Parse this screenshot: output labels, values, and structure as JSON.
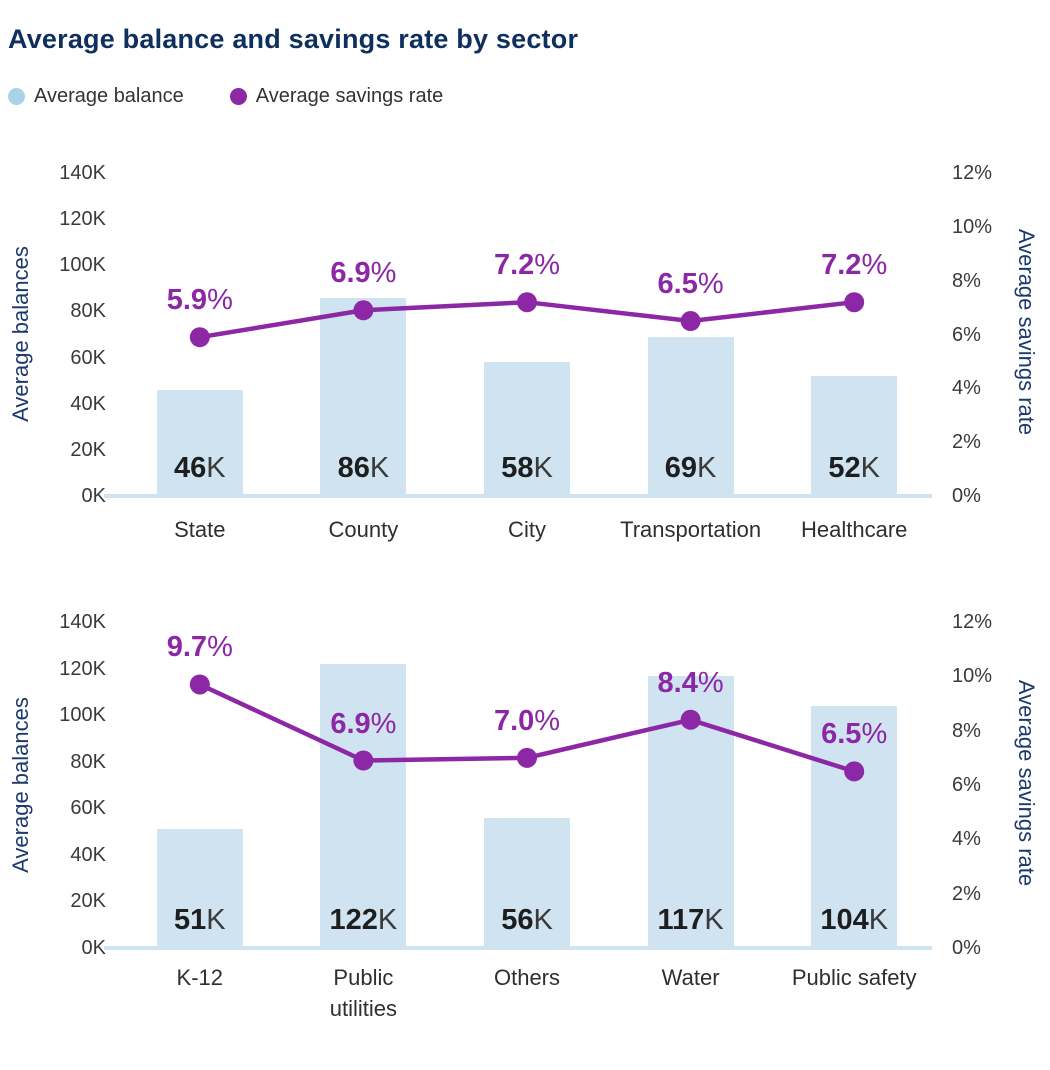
{
  "title": "Average balance and savings rate by sector",
  "legend": [
    {
      "label": "Average balance",
      "color": "#a6d3e8"
    },
    {
      "label": "Average savings rate",
      "color": "#8c27a5"
    }
  ],
  "colors": {
    "bar": "#cfe4f0",
    "baseline": "#cfe4f0",
    "line": "#8c27a5",
    "title": "#0f2f5f",
    "axis_label": "#1b3a6b"
  },
  "chart_data": [
    {
      "type": "bar+line",
      "categories": [
        "State",
        "County",
        "City",
        "Transportation",
        "Healthcare"
      ],
      "series": [
        {
          "name": "Average balance",
          "axis": "left",
          "unit": "K",
          "values": [
            46,
            86,
            58,
            69,
            52
          ]
        },
        {
          "name": "Average savings rate",
          "axis": "right",
          "unit": "%",
          "values": [
            5.9,
            6.9,
            7.2,
            6.5,
            7.2
          ]
        }
      ],
      "left_axis": {
        "label": "Average balances",
        "ticks": [
          "140K",
          "120K",
          "100K",
          "80K",
          "60K",
          "40K",
          "20K",
          "0K"
        ],
        "min": 0,
        "max": 140
      },
      "right_axis": {
        "label": "Average savings rate",
        "ticks": [
          "12%",
          "10%",
          "8%",
          "6%",
          "4%",
          "2%",
          "0%"
        ],
        "min": 0,
        "max": 12
      },
      "grid": false,
      "legend_position": "top-left"
    },
    {
      "type": "bar+line",
      "categories": [
        "K-12",
        "Public\nutilities",
        "Others",
        "Water",
        "Public safety"
      ],
      "series": [
        {
          "name": "Average balance",
          "axis": "left",
          "unit": "K",
          "values": [
            51,
            122,
            56,
            117,
            104
          ]
        },
        {
          "name": "Average savings rate",
          "axis": "right",
          "unit": "%",
          "values": [
            9.7,
            6.9,
            7.0,
            8.4,
            6.5
          ]
        }
      ],
      "left_axis": {
        "label": "Average balances",
        "ticks": [
          "140K",
          "120K",
          "100K",
          "80K",
          "60K",
          "40K",
          "20K",
          "0K"
        ],
        "min": 0,
        "max": 140
      },
      "right_axis": {
        "label": "Average savings rate",
        "ticks": [
          "12%",
          "10%",
          "8%",
          "6%",
          "4%",
          "2%",
          "0%"
        ],
        "min": 0,
        "max": 12
      },
      "grid": false,
      "legend_position": "top-left"
    }
  ]
}
